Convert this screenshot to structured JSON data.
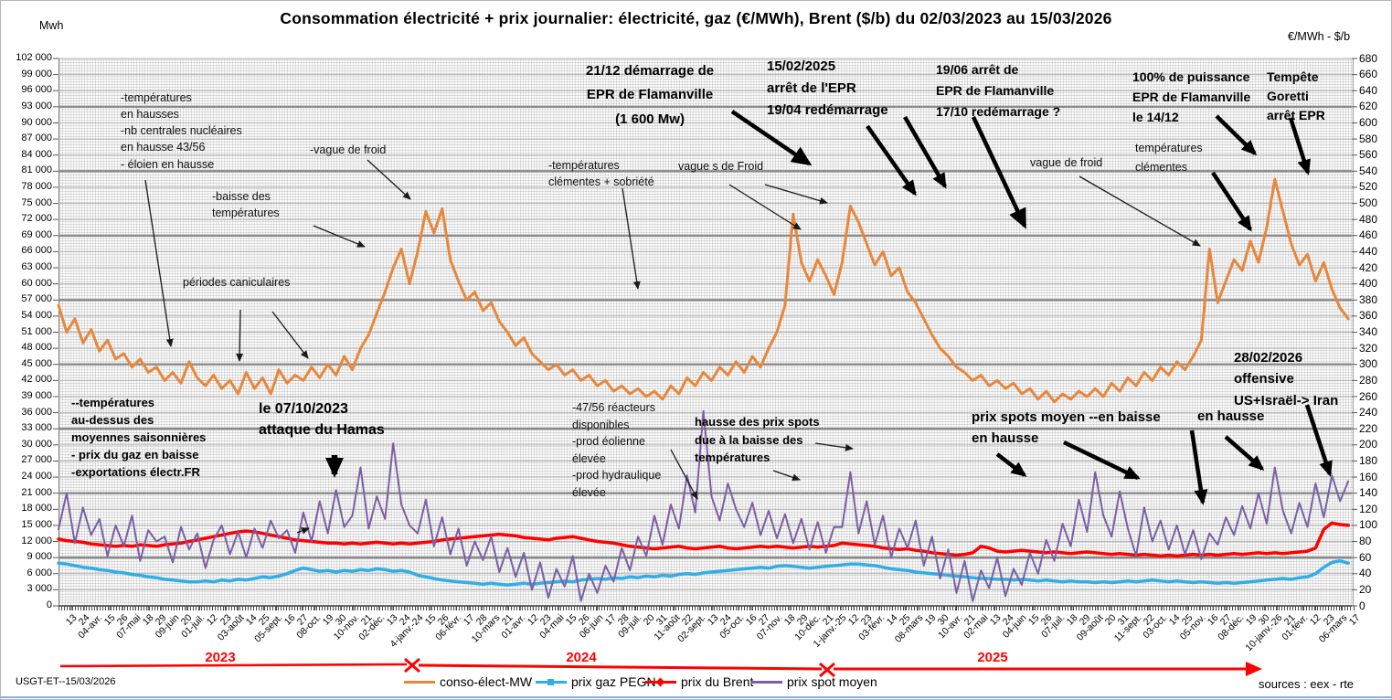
{
  "header": {
    "title": "Consommation électricité + prix journalier: électricité, gaz (€/MWh), Brent ($/b) du 02/03/2023 au 15/03/2026",
    "left_axis_unit": "Mwh",
    "right_axis_unit": "€/MWh - $/b"
  },
  "footer": {
    "left": "USGT-ET--15/03/2026",
    "right": "sources : eex - rte"
  },
  "timeline": {
    "years": [
      "2023",
      "2024",
      "2025"
    ],
    "color": "#ff0000"
  },
  "legend": [
    {
      "label": "conso-élect-MW",
      "color": "#e8873b",
      "marker": "dash"
    },
    {
      "label": "prix gaz PEGN",
      "color": "#31aee3",
      "marker": "square"
    },
    {
      "label": "prix du Brent",
      "color": "#ff0000",
      "marker": "diamond"
    },
    {
      "label": "prix spot moyen",
      "color": "#7a5fa5",
      "marker": "x"
    }
  ],
  "annotations": {
    "temp_hausse": "-températures\nen hausses\n-nb centrales nucléaires\nen hausse 43/56\n- éloien en hausse",
    "baisse_temp": "-baisse des\ntempératures",
    "vague_froid_1": "-vague de froid",
    "canicule": "périodes caniculaires",
    "hamas": "le 07/10/2023\nattaque du Hamas",
    "temp_saison": "--températures\nau-dessus des\nmoyennes saisonnières\n- prix du gaz en baisse\n-exportations électr.FR",
    "epr_demarrage": "21/12 démarrage de\nEPR de Flamanville\n(1 600 Mw)",
    "epr_arret_fev": "15/02/2025\narrêt de  l'EPR\n19/04 redémarrage",
    "temp_clementes_sobriete": "-températures\nclémentes + sobriété",
    "vagues_de_froid": "vague s de Froid",
    "epr_arret_juin": "19/06 arrêt de\nEPR de Flamanville\n17/10 redémarrage ?",
    "vague_froid_2": "vague de froid",
    "temp_clementes": "températures\nclémentes",
    "epr_100": "100% de puissance\nEPR de Flamanville\nle 14/12",
    "goretti": "Tempête\nGoretti\narrêt  EPR",
    "offensive": "28/02/2026\noffensive\nUS+Israël-> Iran",
    "spots_baisse": "prix spots moyen  --en  baisse\nen  hausse",
    "hausse2": "en hausse",
    "reacteurs": "-47/56 réacteurs\ndisponibles\n-prod éolienne\nélevée\n-prod hydraulique\nélevée",
    "hausse_spots": "hausse des prix spots\ndue à la baisse des\ntempératures"
  },
  "chart_data": {
    "type": "line",
    "title": "Consommation électricité + prix journalier: électricité, gaz (€/MWh), Brent ($/b) du 02/03/2023 au 15/03/2026",
    "x_range": [
      "02/03/2023",
      "15/03/2026"
    ],
    "x_tick_labels": [
      "13",
      "24",
      "04-avr.",
      "15",
      "26",
      "07-mai",
      "18",
      "29",
      "09-juin",
      "20",
      "01-juil.",
      "12",
      "23",
      "03-août",
      "14",
      "25",
      "05-sept.",
      "16",
      "27",
      "08-oct.",
      "19",
      "30",
      "10-nov.",
      "21",
      "02-déc.",
      "13",
      "24",
      "4-janv.-24",
      "15",
      "26",
      "06-févr.",
      "17",
      "28",
      "10-mars",
      "21",
      "01-avr.",
      "12",
      "23",
      "04-mai",
      "15",
      "26",
      "06-juin",
      "17",
      "28",
      "09-juil.",
      "20",
      "31",
      "11-août",
      "22",
      "02-sept.",
      "13",
      "24",
      "05-oct.",
      "16",
      "27",
      "07-nov.",
      "18",
      "29",
      "10-déc.",
      "21",
      "1-janv.-25",
      "12",
      "23",
      "03-févr.",
      "14",
      "25",
      "08-mars",
      "19",
      "30",
      "10-avr.",
      "21",
      "02-mai",
      "13",
      "24",
      "04-juin",
      "15",
      "26",
      "07-juil.",
      "18",
      "29",
      "09-août",
      "20",
      "31",
      "11-sept.",
      "22",
      "03-oct.",
      "14",
      "25",
      "05-nov.",
      "16",
      "27",
      "08-déc.",
      "19",
      "30",
      "10-janv.-26",
      "21",
      "01-févr.",
      "12",
      "23",
      "06-mars",
      "17"
    ],
    "y_left": {
      "label": "Mwh",
      "min": 0,
      "max": 102000,
      "step": 3000,
      "tick_labels": [
        "102 000",
        "99 000",
        "96 000",
        "93 000",
        "90 000",
        "87 000",
        "84 000",
        "81 000",
        "78 000",
        "75 000",
        "72 000",
        "69 000",
        "66 000",
        "63 000",
        "60 000",
        "57 000",
        "54 000",
        "51 000",
        "48 000",
        "45 000",
        "42 000",
        "39 000",
        "36 000",
        "33 000",
        "30 000",
        "27 000",
        "24 000",
        "21 000",
        "18 000",
        "15 000",
        "12 000",
        "9 000",
        "6 000",
        "3 000",
        "0"
      ]
    },
    "y_right": {
      "label": "€/MWh - $/b",
      "min": 0,
      "max": 680,
      "step": 20,
      "tick_labels": [
        "680",
        "660",
        "640",
        "620",
        "600",
        "580",
        "560",
        "540",
        "520",
        "500",
        "480",
        "460",
        "440",
        "420",
        "400",
        "380",
        "360",
        "340",
        "320",
        "300",
        "280",
        "260",
        "240",
        "220",
        "200",
        "180",
        "160",
        "140",
        "120",
        "100",
        "80",
        "60",
        "40",
        "20",
        "0"
      ]
    },
    "series": [
      {
        "name": "conso-élect-MW",
        "axis": "left",
        "unit": "Mwh",
        "color": "#e8873b",
        "width": 3,
        "values": [
          56000,
          51000,
          53500,
          49000,
          51500,
          47500,
          49500,
          46000,
          47000,
          44500,
          46000,
          43500,
          44500,
          42000,
          43500,
          41500,
          45500,
          42500,
          41000,
          43000,
          40500,
          42000,
          39500,
          43500,
          40500,
          42500,
          39500,
          44000,
          41500,
          43000,
          42000,
          44500,
          42500,
          45000,
          43000,
          46500,
          44000,
          48000,
          50500,
          54500,
          58500,
          63000,
          66500,
          60000,
          66000,
          73500,
          69500,
          74000,
          64500,
          60500,
          57000,
          58500,
          55000,
          56500,
          53000,
          51000,
          48500,
          50000,
          47000,
          45500,
          44000,
          45000,
          43000,
          44000,
          42000,
          43000,
          41000,
          42000,
          40000,
          41000,
          39500,
          40500,
          39000,
          40000,
          38500,
          41000,
          39500,
          42500,
          41000,
          43500,
          42000,
          44500,
          43000,
          45500,
          43500,
          46500,
          44500,
          48000,
          51000,
          56000,
          73000,
          64000,
          60500,
          64500,
          61500,
          58000,
          64000,
          74500,
          71500,
          67500,
          63500,
          66000,
          61500,
          63000,
          58500,
          56500,
          53500,
          50500,
          48000,
          46500,
          44500,
          43500,
          42000,
          43000,
          41000,
          42000,
          40500,
          41500,
          39500,
          40500,
          38500,
          40000,
          38000,
          39500,
          38500,
          40000,
          39000,
          40500,
          39000,
          41500,
          40000,
          42500,
          41000,
          43500,
          42000,
          44500,
          43000,
          45500,
          44000,
          46500,
          49500,
          66500,
          56500,
          60500,
          64500,
          62500,
          68000,
          64000,
          70500,
          79500,
          73500,
          67500,
          63500,
          65500,
          60500,
          64000,
          59000,
          55500,
          53500
        ]
      },
      {
        "name": "prix gaz PEGN",
        "axis": "right",
        "unit": "€/MWh",
        "color": "#31aee3",
        "width": 3.5,
        "values": [
          53,
          52,
          50,
          48,
          47,
          45,
          44,
          42,
          41,
          39,
          38,
          36,
          35,
          33,
          32,
          31,
          30,
          30,
          31,
          30,
          32,
          31,
          33,
          32,
          34,
          36,
          35,
          37,
          40,
          44,
          47,
          45,
          43,
          44,
          42,
          44,
          43,
          45,
          44,
          46,
          45,
          43,
          44,
          42,
          38,
          36,
          34,
          32,
          31,
          30,
          29,
          28,
          27,
          28,
          27,
          26,
          27,
          28,
          27,
          28,
          29,
          30,
          31,
          30,
          32,
          33,
          34,
          33,
          35,
          34,
          36,
          35,
          37,
          36,
          38,
          37,
          39,
          40,
          39,
          41,
          42,
          43,
          44,
          45,
          46,
          47,
          48,
          47,
          49,
          50,
          49,
          48,
          47,
          48,
          49,
          50,
          51,
          52,
          52,
          51,
          50,
          48,
          46,
          45,
          44,
          42,
          41,
          40,
          39,
          38,
          37,
          36,
          35,
          34,
          34,
          33,
          33,
          32,
          33,
          32,
          31,
          32,
          31,
          30,
          31,
          30,
          30,
          29,
          30,
          29,
          30,
          31,
          30,
          31,
          32,
          31,
          30,
          31,
          30,
          29,
          30,
          29,
          28,
          29,
          28,
          29,
          30,
          31,
          32,
          33,
          34,
          33,
          35,
          36,
          40,
          48,
          54,
          56,
          53
        ]
      },
      {
        "name": "prix du Brent",
        "axis": "right",
        "unit": "$/b",
        "color": "#ff0000",
        "width": 3.5,
        "values": [
          83,
          81,
          80,
          79,
          77,
          76,
          75,
          74,
          75,
          74,
          76,
          75,
          74,
          76,
          77,
          78,
          80,
          82,
          84,
          86,
          88,
          90,
          92,
          93,
          92,
          90,
          88,
          86,
          84,
          82,
          81,
          80,
          79,
          78,
          78,
          77,
          78,
          77,
          78,
          79,
          78,
          77,
          78,
          77,
          78,
          79,
          80,
          82,
          83,
          84,
          85,
          86,
          87,
          88,
          89,
          88,
          87,
          85,
          84,
          83,
          82,
          84,
          85,
          86,
          84,
          82,
          80,
          79,
          78,
          76,
          74,
          73,
          72,
          71,
          72,
          73,
          74,
          72,
          71,
          72,
          73,
          74,
          72,
          71,
          72,
          73,
          74,
          73,
          74,
          73,
          72,
          73,
          74,
          73,
          74,
          75,
          78,
          77,
          76,
          75,
          74,
          72,
          71,
          70,
          71,
          69,
          68,
          66,
          65,
          64,
          63,
          64,
          66,
          74,
          72,
          68,
          67,
          68,
          69,
          68,
          67,
          66,
          67,
          66,
          65,
          66,
          67,
          66,
          65,
          64,
          65,
          64,
          63,
          64,
          63,
          62,
          63,
          62,
          63,
          64,
          63,
          64,
          63,
          64,
          65,
          64,
          65,
          66,
          65,
          66,
          65,
          66,
          67,
          68,
          72,
          95,
          103,
          101,
          100
        ]
      },
      {
        "name": "prix spot moyen",
        "axis": "right",
        "unit": "€/MWh",
        "color": "#7a5fa5",
        "width": 2,
        "values": [
          95,
          140,
          78,
          122,
          88,
          108,
          62,
          100,
          74,
          112,
          56,
          94,
          80,
          86,
          54,
          98,
          70,
          90,
          47,
          82,
          100,
          64,
          92,
          60,
          96,
          72,
          106,
          84,
          94,
          66,
          116,
          80,
          130,
          90,
          144,
          98,
          112,
          172,
          96,
          136,
          108,
          202,
          126,
          100,
          90,
          132,
          74,
          110,
          64,
          96,
          50,
          80,
          57,
          86,
          42,
          72,
          36,
          66,
          20,
          54,
          10,
          46,
          24,
          62,
          6,
          40,
          16,
          50,
          30,
          72,
          44,
          86,
          62,
          112,
          76,
          126,
          96,
          162,
          116,
          242,
          136,
          106,
          152,
          120,
          98,
          128,
          88,
          118,
          84,
          114,
          78,
          108,
          70,
          104,
          66,
          98,
          98,
          166,
          90,
          130,
          76,
          112,
          60,
          96,
          72,
          106,
          50,
          86,
          34,
          70,
          16,
          56,
          6,
          44,
          22,
          60,
          12,
          46,
          26,
          66,
          40,
          82,
          56,
          102,
          74,
          132,
          92,
          166,
          112,
          86,
          142,
          96,
          62,
          122,
          80,
          106,
          70,
          100,
          64,
          94,
          58,
          90,
          76,
          110,
          88,
          124,
          96,
          140,
          102,
          172,
          118,
          90,
          128,
          98,
          152,
          110,
          162,
          130,
          155
        ]
      }
    ]
  }
}
